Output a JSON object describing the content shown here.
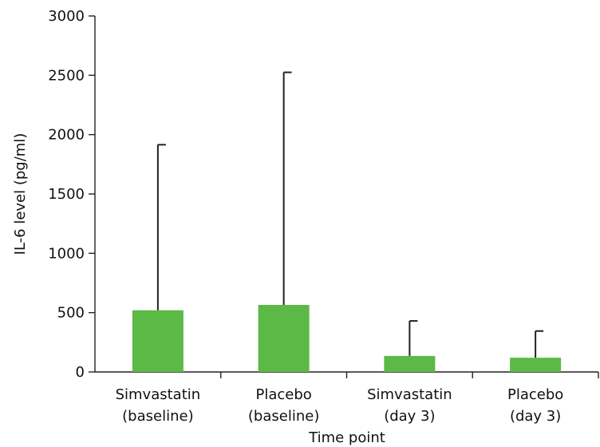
{
  "chart_data": {
    "type": "bar",
    "title": "",
    "xlabel": "Time point",
    "ylabel": "IL-6 level (pg/ml)",
    "ylim": [
      0,
      3000
    ],
    "yticks": [
      0,
      500,
      1000,
      1500,
      2000,
      2500,
      3000
    ],
    "categories": [
      [
        "Simvastatin",
        "(baseline)"
      ],
      [
        "Placebo",
        "(baseline)"
      ],
      [
        "Simvastatin",
        "(day 3)"
      ],
      [
        "Placebo",
        "(day 3)"
      ]
    ],
    "values": [
      520,
      565,
      135,
      120
    ],
    "error_upper": [
      1915,
      2525,
      430,
      345
    ],
    "bar_color": "#5cb946",
    "grid": false,
    "legend": "none"
  }
}
